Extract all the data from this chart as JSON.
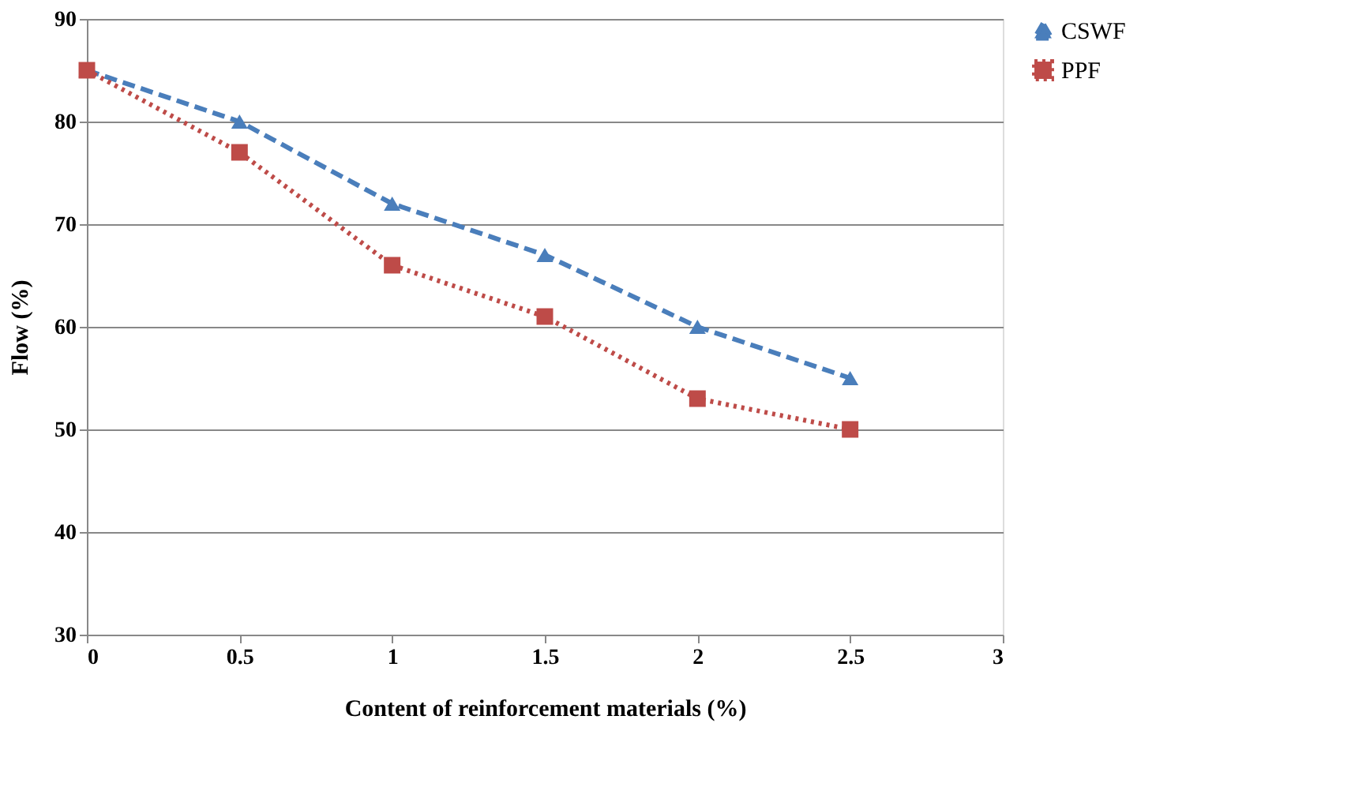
{
  "chart_data": {
    "type": "line",
    "xlabel": "Content of reinforcement materials (%)",
    "ylabel": "Flow (%)",
    "x": [
      0,
      0.5,
      1,
      1.5,
      2,
      2.5
    ],
    "series": [
      {
        "name": "CSWF",
        "color": "#4a7ebb",
        "values": [
          85,
          80,
          72,
          67,
          60,
          55
        ],
        "marker": "triangle",
        "line_style": "dashed"
      },
      {
        "name": "PPF",
        "color": "#be4b48",
        "values": [
          85,
          77,
          66,
          61,
          53,
          50
        ],
        "marker": "square",
        "line_style": "dotted"
      }
    ],
    "xlim": [
      0,
      3
    ],
    "xticks": [
      0,
      0.5,
      1,
      1.5,
      2,
      2.5,
      3
    ],
    "ylim": [
      30,
      90
    ],
    "yticks": [
      30,
      40,
      50,
      60,
      70,
      80,
      90
    ],
    "grid": "y",
    "legend": "right"
  }
}
